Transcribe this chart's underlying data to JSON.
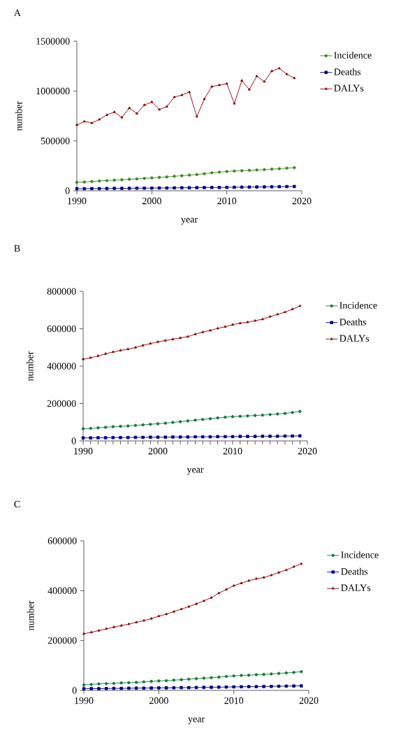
{
  "chart_data": [
    {
      "type": "line",
      "title": "A",
      "xlabel": "year",
      "ylabel": "number",
      "xlim": [
        1990,
        2020
      ],
      "ylim": [
        0,
        1500000
      ],
      "xticks": [
        1990,
        2000,
        2010,
        2020
      ],
      "yticks": [
        0,
        500000,
        1000000,
        1500000
      ],
      "legend": "right",
      "grid": false,
      "x": [
        1990,
        1991,
        1992,
        1993,
        1994,
        1995,
        1996,
        1997,
        1998,
        1999,
        2000,
        2001,
        2002,
        2003,
        2004,
        2005,
        2006,
        2007,
        2008,
        2009,
        2010,
        2011,
        2012,
        2013,
        2014,
        2015,
        2016,
        2017,
        2018,
        2019
      ],
      "series": [
        {
          "name": "Incidence",
          "color": "#3a8a1e",
          "marker": "circle",
          "values": [
            85000,
            88000,
            93000,
            98000,
            102000,
            106000,
            110000,
            115000,
            119000,
            124000,
            129000,
            134000,
            139000,
            145000,
            151000,
            157000,
            163000,
            171000,
            180000,
            187000,
            193000,
            198000,
            201000,
            205000,
            208000,
            212000,
            217000,
            221000,
            227000,
            232000
          ]
        },
        {
          "name": "Deaths",
          "color": "#00008b",
          "marker": "square",
          "values": [
            21000,
            21000,
            22000,
            22000,
            23000,
            24000,
            24000,
            25000,
            26000,
            26000,
            27000,
            28000,
            28000,
            29000,
            30000,
            30000,
            31000,
            32000,
            33000,
            33000,
            34000,
            35000,
            36000,
            37000,
            38000,
            39000,
            40000,
            41000,
            42000,
            43000
          ]
        },
        {
          "name": "DALYs",
          "color": "#8b0000",
          "marker": "triangle",
          "values": [
            660000,
            695000,
            680000,
            715000,
            760000,
            790000,
            735000,
            830000,
            775000,
            860000,
            890000,
            815000,
            845000,
            940000,
            960000,
            990000,
            745000,
            920000,
            1045000,
            1060000,
            1075000,
            875000,
            1105000,
            1015000,
            1150000,
            1095000,
            1200000,
            1228000,
            1170000,
            1130000
          ]
        }
      ]
    },
    {
      "type": "line",
      "title": "B",
      "xlabel": "year",
      "ylabel": "number",
      "xlim": [
        1990,
        2020
      ],
      "ylim": [
        0,
        800000
      ],
      "xticks": [
        1990,
        {
          "value": 1991,
          "label": null
        },
        {
          "value": 1992,
          "label": null
        },
        {
          "value": 1993,
          "label": null
        },
        {
          "value": 1994,
          "label": null
        },
        {
          "value": 1995,
          "label": null
        },
        {
          "value": 1996,
          "label": null
        },
        {
          "value": 1997,
          "label": null
        },
        {
          "value": 1998,
          "label": null
        },
        {
          "value": 1999,
          "label": null
        },
        2000,
        {
          "value": 2001,
          "label": null
        },
        {
          "value": 2002,
          "label": null
        },
        {
          "value": 2003,
          "label": null
        },
        {
          "value": 2004,
          "label": null
        },
        {
          "value": 2005,
          "label": null
        },
        {
          "value": 2006,
          "label": null
        },
        {
          "value": 2007,
          "label": null
        },
        {
          "value": 2008,
          "label": null
        },
        {
          "value": 2009,
          "label": null
        },
        2010,
        {
          "value": 2011,
          "label": null
        },
        {
          "value": 2012,
          "label": null
        },
        {
          "value": 2013,
          "label": null
        },
        {
          "value": 2014,
          "label": null
        },
        {
          "value": 2015,
          "label": null
        },
        {
          "value": 2016,
          "label": null
        },
        {
          "value": 2017,
          "label": null
        },
        {
          "value": 2018,
          "label": null
        },
        {
          "value": 2019,
          "label": null
        },
        2020
      ],
      "yticks": [
        0,
        200000,
        400000,
        600000,
        800000
      ],
      "legend": "right",
      "grid": false,
      "x": [
        1990,
        1991,
        1992,
        1993,
        1994,
        1995,
        1996,
        1997,
        1998,
        1999,
        2000,
        2001,
        2002,
        2003,
        2004,
        2005,
        2006,
        2007,
        2008,
        2009,
        2010,
        2011,
        2012,
        2013,
        2014,
        2015,
        2016,
        2017,
        2018,
        2019
      ],
      "series": [
        {
          "name": "Incidence",
          "color": "#137a3c",
          "marker": "circle",
          "values": [
            65000,
            67000,
            70000,
            73000,
            76000,
            78000,
            80000,
            83000,
            86000,
            89000,
            92000,
            95000,
            99000,
            103000,
            107000,
            111000,
            115000,
            119000,
            123000,
            127000,
            130000,
            132000,
            134000,
            136000,
            138000,
            141000,
            144000,
            147000,
            152000,
            158000
          ]
        },
        {
          "name": "Deaths",
          "color": "#00008b",
          "marker": "square",
          "values": [
            16000,
            16000,
            17000,
            17000,
            18000,
            18000,
            18000,
            19000,
            19000,
            20000,
            20000,
            20000,
            21000,
            21000,
            21000,
            22000,
            22000,
            22000,
            23000,
            23000,
            23000,
            24000,
            24000,
            24000,
            25000,
            25000,
            25000,
            26000,
            26000,
            27000
          ]
        },
        {
          "name": "DALYs",
          "color": "#8b0000",
          "marker": "triangle",
          "values": [
            437000,
            445000,
            455000,
            466000,
            476000,
            484000,
            491000,
            500000,
            511000,
            521000,
            530000,
            537000,
            544000,
            551000,
            558000,
            571000,
            582000,
            591000,
            602000,
            611000,
            622000,
            630000,
            635000,
            643000,
            651000,
            665000,
            677000,
            689000,
            705000,
            722000
          ]
        }
      ]
    },
    {
      "type": "line",
      "title": "C",
      "xlabel": "year",
      "ylabel": "number",
      "xlim": [
        1990,
        2020
      ],
      "ylim": [
        0,
        600000
      ],
      "xticks": [
        1990,
        2000,
        2010,
        2020
      ],
      "yticks": [
        0,
        200000,
        400000,
        600000
      ],
      "legend": "right",
      "grid": false,
      "x": [
        1990,
        1991,
        1992,
        1993,
        1994,
        1995,
        1996,
        1997,
        1998,
        1999,
        2000,
        2001,
        2002,
        2003,
        2004,
        2005,
        2006,
        2007,
        2008,
        2009,
        2010,
        2011,
        2012,
        2013,
        2014,
        2015,
        2016,
        2017,
        2018,
        2019
      ],
      "series": [
        {
          "name": "Incidence",
          "color": "#137a3c",
          "marker": "circle",
          "values": [
            22000,
            24000,
            26000,
            27000,
            28000,
            30000,
            31000,
            32000,
            34000,
            36000,
            38000,
            39000,
            41000,
            43000,
            45000,
            47000,
            49000,
            51000,
            53000,
            56000,
            58000,
            60000,
            61000,
            63000,
            64000,
            66000,
            68000,
            70000,
            72000,
            75000
          ]
        },
        {
          "name": "Deaths",
          "color": "#00008b",
          "marker": "square",
          "values": [
            6500,
            7000,
            7000,
            7500,
            8000,
            8000,
            8500,
            9000,
            9000,
            9500,
            10000,
            10000,
            10500,
            11000,
            11000,
            11500,
            12000,
            12500,
            13000,
            13500,
            14000,
            14500,
            15000,
            15000,
            15500,
            16000,
            16500,
            17000,
            17500,
            18000
          ]
        },
        {
          "name": "DALYs",
          "color": "#8b0000",
          "marker": "triangle",
          "values": [
            227000,
            233000,
            240000,
            247000,
            254000,
            260000,
            266000,
            273000,
            280000,
            288000,
            298000,
            306000,
            316000,
            326000,
            336000,
            347000,
            359000,
            372000,
            390000,
            405000,
            420000,
            430000,
            440000,
            448000,
            453000,
            462000,
            473000,
            483000,
            496000,
            508000
          ]
        }
      ]
    }
  ]
}
